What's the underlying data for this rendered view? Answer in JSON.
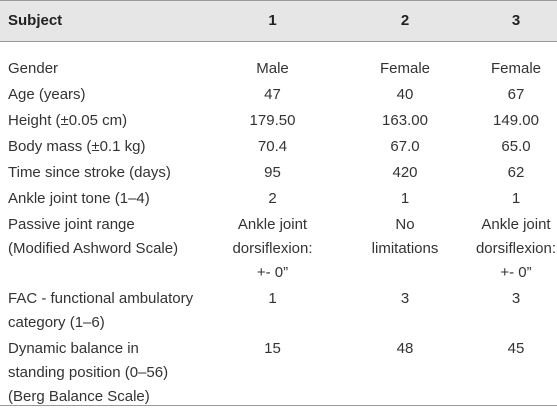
{
  "table": {
    "header": [
      "Subject",
      "1",
      "2",
      "3"
    ],
    "rows": [
      [
        [
          "Gender"
        ],
        [
          "Male"
        ],
        [
          "Female"
        ],
        [
          "Female"
        ]
      ],
      [
        [
          "Age (years)"
        ],
        [
          "47"
        ],
        [
          "40"
        ],
        [
          "67"
        ]
      ],
      [
        [
          "Height (±0.05 cm)"
        ],
        [
          "179.50"
        ],
        [
          "163.00"
        ],
        [
          "149.00"
        ]
      ],
      [
        [
          "Body mass (±0.1 kg)"
        ],
        [
          "70.4"
        ],
        [
          "67.0"
        ],
        [
          "65.0"
        ]
      ],
      [
        [
          "Time since stroke (days)"
        ],
        [
          "95"
        ],
        [
          "420"
        ],
        [
          "62"
        ]
      ],
      [
        [
          "Ankle joint tone (1–4)"
        ],
        [
          "2"
        ],
        [
          "1"
        ],
        [
          "1"
        ]
      ],
      [
        [
          "Passive joint range",
          "(Modified Ashword Scale)"
        ],
        [
          "Ankle joint",
          "dorsiflexion:",
          "+- 0”"
        ],
        [
          "No",
          "limitations"
        ],
        [
          "Ankle joint",
          "dorsiflexion:",
          "+- 0”"
        ]
      ],
      [
        [
          "FAC - functional ambulatory",
          "category (1–6)"
        ],
        [
          "1"
        ],
        [
          "3"
        ],
        [
          "3"
        ]
      ],
      [
        [
          "Dynamic balance in",
          "standing position (0–56)",
          "(Berg Balance Scale)"
        ],
        [
          "15"
        ],
        [
          "48"
        ],
        [
          "45"
        ]
      ]
    ]
  }
}
